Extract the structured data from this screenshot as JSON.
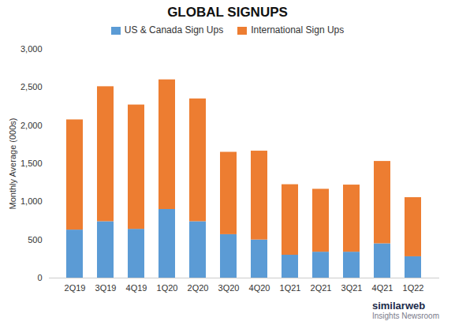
{
  "chart_data": {
    "type": "bar",
    "stacked": true,
    "title": "GLOBAL SIGNUPS",
    "ylabel": "Monthly Average (000s)",
    "categories": [
      "2Q19",
      "3Q19",
      "4Q19",
      "1Q20",
      "2Q20",
      "3Q20",
      "4Q20",
      "1Q21",
      "2Q21",
      "3Q21",
      "4Q21",
      "1Q22"
    ],
    "series": [
      {
        "name": "US & Canada Sign Ups",
        "color": "#5B9BD5",
        "values": [
          630,
          740,
          640,
          900,
          740,
          570,
          500,
          300,
          340,
          340,
          450,
          280
        ]
      },
      {
        "name": "International Sign Ups",
        "color": "#ED7D31",
        "values": [
          1445,
          1770,
          1630,
          1700,
          1610,
          1080,
          1165,
          925,
          825,
          880,
          1080,
          775
        ]
      }
    ],
    "ylim": [
      0,
      3000
    ],
    "yticks": [
      0,
      500,
      {
        "value": 1000,
        "label": "1,000"
      },
      {
        "value": 1500,
        "label": "1,500"
      },
      {
        "value": 2000,
        "label": "2,000"
      },
      {
        "value": 2500,
        "label": "2,500"
      },
      {
        "value": 3000,
        "label": "3,000"
      }
    ],
    "grid": false,
    "legend": "top",
    "annotations": [
      {
        "text": "similarweb",
        "color": "#1B2A4A"
      },
      {
        "text": "Insights Newsroom",
        "color": "#7A7A8A"
      }
    ]
  }
}
